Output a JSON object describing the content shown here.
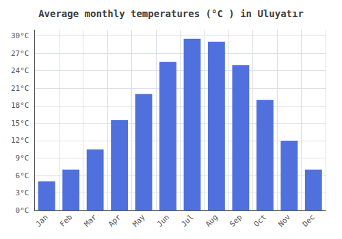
{
  "chart_data": {
    "type": "bar",
    "title": "Average monthly temperatures (°C ) in Uluyatır",
    "categories": [
      "Jan",
      "Feb",
      "Mar",
      "Apr",
      "May",
      "Jun",
      "Jul",
      "Aug",
      "Sep",
      "Oct",
      "Nov",
      "Dec"
    ],
    "values": [
      5.0,
      7.0,
      10.5,
      15.5,
      20.0,
      25.5,
      29.5,
      29.0,
      25.0,
      19.0,
      12.0,
      7.0
    ],
    "ylim": [
      0,
      31
    ],
    "yticks": [
      {
        "value": 0,
        "label": "0°C"
      },
      {
        "value": 3,
        "label": "3°C"
      },
      {
        "value": 6,
        "label": "6°C"
      },
      {
        "value": 9,
        "label": "9°C"
      },
      {
        "value": 12,
        "label": "12°C"
      },
      {
        "value": 15,
        "label": "15°C"
      },
      {
        "value": 18,
        "label": "18°C"
      },
      {
        "value": 21,
        "label": "21°C"
      },
      {
        "value": 24,
        "label": "24°C"
      },
      {
        "value": 27,
        "label": "27°C"
      },
      {
        "value": 30,
        "label": "30°C"
      }
    ],
    "grid": true
  }
}
